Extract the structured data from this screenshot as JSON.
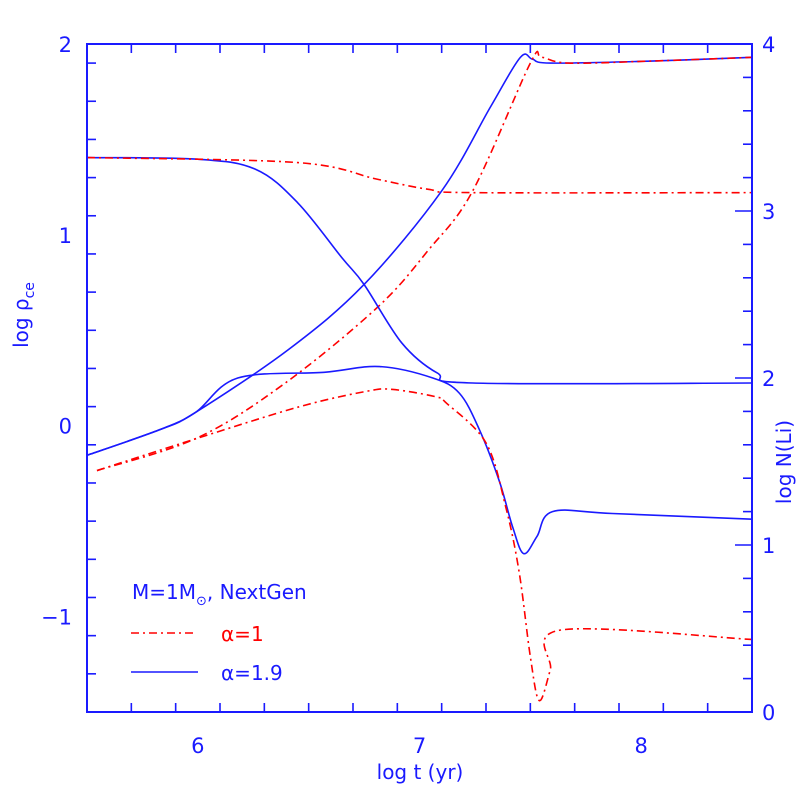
{
  "chart_data": {
    "type": "line",
    "xlabel": "log t (yr)",
    "ylabel_left": "log ρ",
    "ylabel_left_subscript": "ce",
    "ylabel_right": "log N(Li)",
    "xlim": [
      5.5,
      8.5
    ],
    "ylim_left": [
      -1.5,
      2
    ],
    "ylim_right": [
      0,
      4
    ],
    "x_ticks": [
      "6",
      "7",
      "8"
    ],
    "y_left_ticks": [
      "−1",
      "0",
      "1",
      "2"
    ],
    "y_right_ticks": [
      "0",
      "1",
      "2",
      "3",
      "4"
    ],
    "grid": false,
    "colors": {
      "axis": "#1a1aff",
      "alpha1": "#ff0000",
      "alpha19": "#1a1aff"
    },
    "legend": {
      "placement": "bottom-left",
      "title": "M=1M",
      "title_sub": "⊙",
      "title_rest": ", NextGen",
      "entries": [
        {
          "label": "α=1",
          "color": "#ff0000",
          "style": "dash-dot"
        },
        {
          "label": "α=1.9",
          "color": "#1a1aff",
          "style": "solid"
        }
      ]
    },
    "series": [
      {
        "legend": "α=1.9",
        "axis": "left",
        "color": "#1a1aff",
        "style": "solid",
        "x": [
          5.5,
          5.83,
          5.99,
          6.41,
          6.75,
          7.1,
          7.32,
          7.455,
          7.51,
          7.59,
          8.03,
          8.5
        ],
        "y": [
          -0.155,
          -0.02,
          0.07,
          0.4,
          0.74,
          1.23,
          1.67,
          1.93,
          1.92,
          1.9,
          1.91,
          1.93
        ]
      },
      {
        "legend": "α=1",
        "axis": "left",
        "color": "#ff0000",
        "style": "dash-dot",
        "x": [
          5.545,
          5.995,
          6.39,
          6.81,
          7.04,
          7.24,
          7.5,
          7.55,
          7.67,
          8.03,
          8.5
        ],
        "y": [
          -0.235,
          -0.065,
          0.22,
          0.62,
          0.92,
          1.23,
          1.9,
          1.93,
          1.9,
          1.91,
          1.93
        ]
      },
      {
        "legend": "α=1.9",
        "axis": "right",
        "color": "#1a1aff",
        "style": "solid",
        "x": [
          5.5,
          6.0,
          6.26,
          6.45,
          6.65,
          6.75,
          6.92,
          7.08,
          7.24,
          8.5
        ],
        "y": [
          3.32,
          3.31,
          3.25,
          3.05,
          2.72,
          2.56,
          2.21,
          2.03,
          1.97,
          1.97
        ]
      },
      {
        "legend": "α=1",
        "axis": "right",
        "color": "#ff0000",
        "style": "dash-dot",
        "x": [
          5.5,
          6.45,
          6.81,
          7.04,
          7.24,
          8.5
        ],
        "y": [
          3.32,
          3.29,
          3.19,
          3.13,
          3.11,
          3.11
        ]
      },
      {
        "legend": "α=1.9",
        "axis": "left",
        "color": "#1a1aff",
        "style": "solid",
        "x": [
          5.5,
          5.83,
          5.99,
          6.18,
          6.57,
          6.82,
          7.06,
          7.18,
          7.27,
          7.36,
          7.42,
          7.47,
          7.53,
          7.6,
          7.87,
          8.5
        ],
        "y": [
          -0.155,
          -0.02,
          0.07,
          0.25,
          0.28,
          0.31,
          0.25,
          0.17,
          -0.02,
          -0.29,
          -0.53,
          -0.67,
          -0.58,
          -0.45,
          -0.46,
          -0.49
        ]
      },
      {
        "legend": "α=1",
        "axis": "left",
        "color": "#ff0000",
        "style": "dash-dot",
        "x": [
          5.545,
          6.0,
          6.46,
          6.76,
          6.88,
          7.08,
          7.12,
          7.3,
          7.39,
          7.45,
          7.5,
          7.54,
          7.59,
          7.64,
          8.5
        ],
        "y": [
          -0.235,
          -0.065,
          0.1,
          0.18,
          0.19,
          0.15,
          0.12,
          -0.09,
          -0.43,
          -0.77,
          -1.21,
          -1.44,
          -1.28,
          -1.07,
          -1.12
        ]
      }
    ]
  }
}
